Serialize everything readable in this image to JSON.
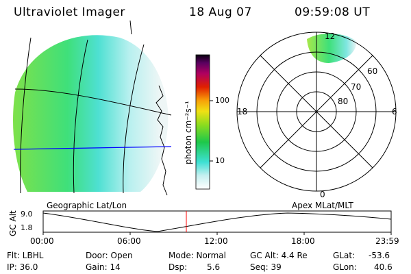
{
  "header": {
    "title": "Ultraviolet Imager",
    "date": "18 Aug 07",
    "time": "09:59:08 UT"
  },
  "colorbar": {
    "label": "photon cm⁻²s⁻¹",
    "ticks": [
      "100",
      "10"
    ]
  },
  "polar_plot": {
    "mlt_labels": [
      "12",
      "18",
      "6",
      "0"
    ],
    "lat_labels": [
      "60",
      "70",
      "80"
    ]
  },
  "altitude_plot": {
    "ylabel": "GC Alt",
    "y_ticks": [
      "9.0",
      "1.8"
    ],
    "left_title": "Geographic Lat/Lon",
    "right_title": "Apex MLat/MLT",
    "x_ticks": [
      "00:00",
      "06:00",
      "12:00",
      "18:00",
      "23:59"
    ]
  },
  "info": {
    "flt": "Flt: LBHL",
    "ip": "IP: 36.0",
    "door": "Door: Open",
    "gain": "Gain: 14",
    "mode": "Mode: Normal",
    "dsp_label": "Dsp:",
    "dsp_value": "5.6",
    "gcalt": "GC Alt: 4.4 Re",
    "seq": "Seq: 39",
    "glat_label": "GLat:",
    "glat_value": "-53.6",
    "glon_label": "GLon:",
    "glon_value": "40.6"
  },
  "colors": {
    "accent_line": "#0000ff",
    "marker": "#ff0000"
  }
}
